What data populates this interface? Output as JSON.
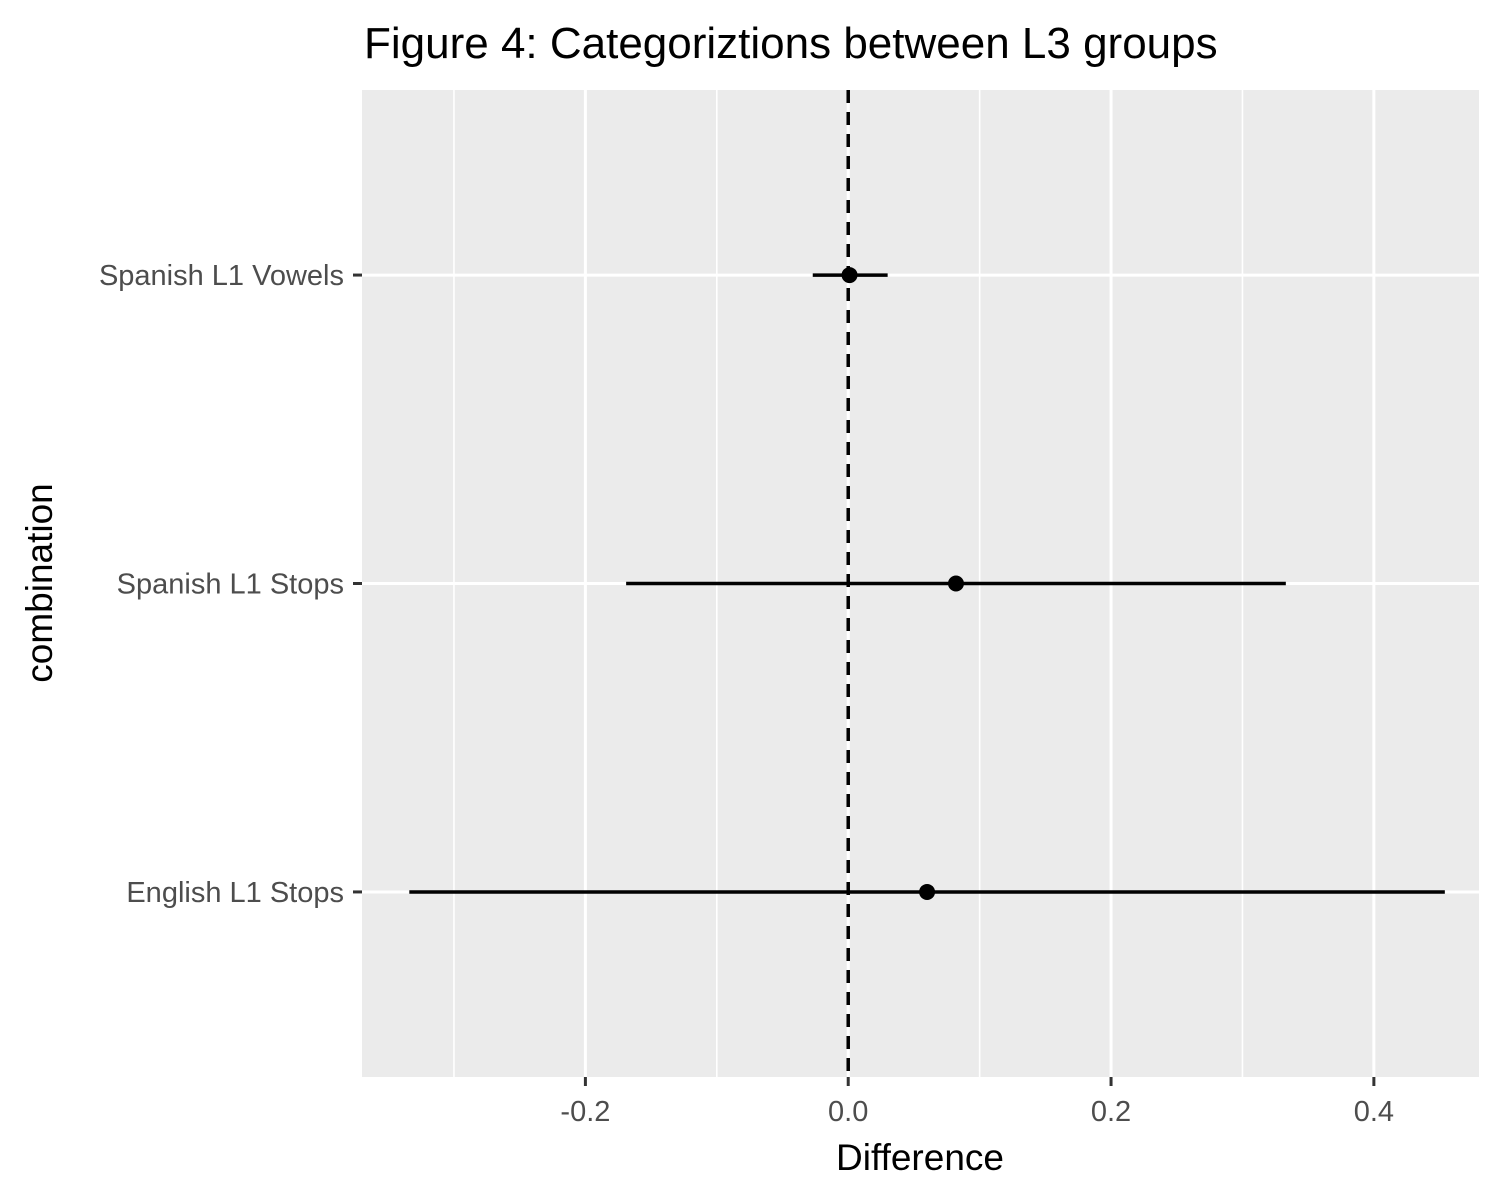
{
  "chart_data": {
    "type": "errorbar-dot",
    "title": "Figure 4: Categoriztions between L3 groups",
    "xlabel": "Difference",
    "ylabel": "combination",
    "xlim": [
      -0.37,
      0.48
    ],
    "x_ticks": [
      -0.2,
      0.0,
      0.2,
      0.4
    ],
    "x_tick_labels": [
      "-0.2",
      "0.0",
      "0.2",
      "0.4"
    ],
    "reference_line": {
      "x": 0,
      "style": "dashed"
    },
    "grid": true,
    "points": [
      {
        "category": "Spanish L1 Vowels",
        "estimate": 0.001,
        "lower": -0.027,
        "upper": 0.03
      },
      {
        "category": "Spanish L1 Stops",
        "estimate": 0.082,
        "lower": -0.169,
        "upper": 0.333
      },
      {
        "category": "English L1 Stops",
        "estimate": 0.06,
        "lower": -0.334,
        "upper": 0.454
      }
    ],
    "colors": {
      "panel": "#ebebeb",
      "grid": "#ffffff",
      "marks": "#000000",
      "tick_text": "#4d4d4d"
    }
  }
}
